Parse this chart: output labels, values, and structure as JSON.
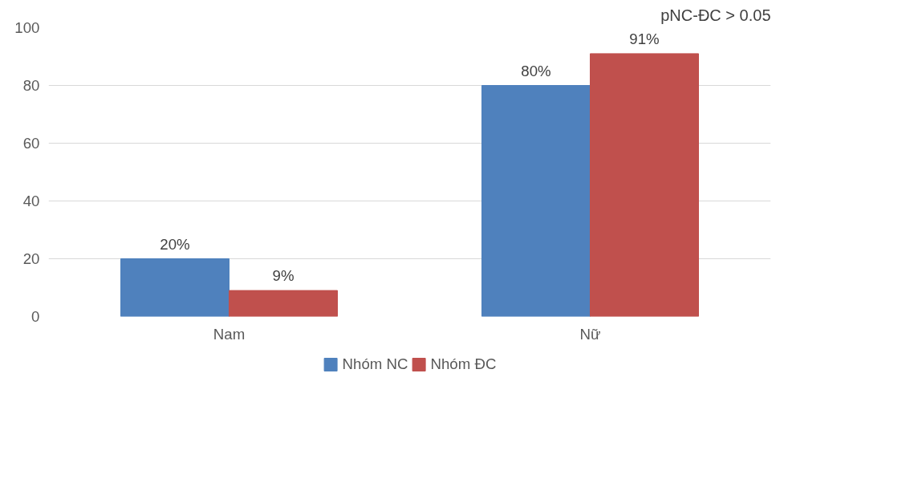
{
  "chart_data": {
    "type": "bar",
    "categories": [
      "Nam",
      "Nữ"
    ],
    "series": [
      {
        "name": "Nhóm NC",
        "color": "#4f81bd",
        "values": [
          20,
          80
        ],
        "value_labels": [
          "20%",
          "80%"
        ]
      },
      {
        "name": "Nhóm ĐC",
        "color": "#c0504d",
        "values": [
          9,
          91
        ],
        "value_labels": [
          "9%",
          "91%"
        ]
      }
    ],
    "ylim": [
      0,
      100
    ],
    "yticks": [
      0,
      20,
      40,
      60,
      80,
      100
    ],
    "grid": "y",
    "legend": "bottom",
    "annotations": [
      "pNC-ĐC > 0.05"
    ]
  }
}
